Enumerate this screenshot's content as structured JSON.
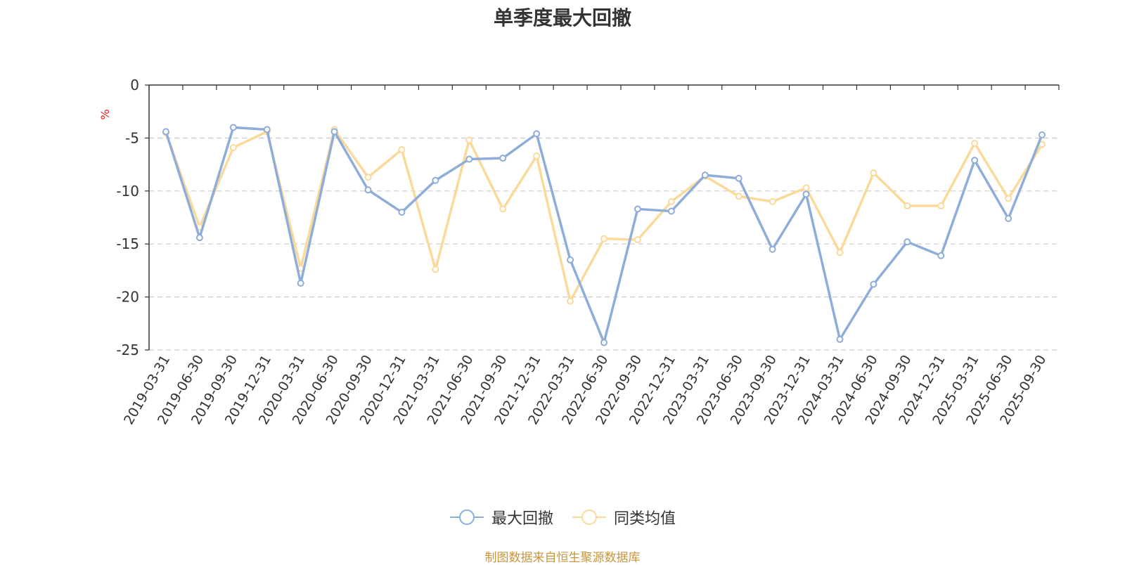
{
  "colors": {
    "series1": "#8fadd9",
    "series2": "#fbd99a",
    "axis": "#333333",
    "grid": "#cccccc",
    "unit": "#e02020",
    "source": "#c8963e"
  },
  "chart_data": {
    "type": "line",
    "title": "单季度最大回撤",
    "ylabel": "%",
    "ylim": [
      -25,
      0
    ],
    "yticks": [
      0,
      -5,
      -10,
      -15,
      -20,
      -25
    ],
    "grid": true,
    "legend_position": "bottom-center",
    "x": [
      "2019-03-31",
      "2019-06-30",
      "2019-09-30",
      "2019-12-31",
      "2020-03-31",
      "2020-06-30",
      "2020-09-30",
      "2020-12-31",
      "2021-03-31",
      "2021-06-30",
      "2021-09-30",
      "2021-12-31",
      "2022-03-31",
      "2022-06-30",
      "2022-09-30",
      "2022-12-31",
      "2023-03-31",
      "2023-06-30",
      "2023-09-30",
      "2023-12-31",
      "2024-03-31",
      "2024-06-30",
      "2024-09-30",
      "2024-12-31",
      "2025-03-31",
      "2025-06-30",
      "2025-09-30"
    ],
    "series": [
      {
        "name": "最大回撤",
        "values": [
          -4.4,
          -14.4,
          -4.0,
          -4.2,
          -18.7,
          -4.4,
          -9.9,
          -12.0,
          -9.0,
          -7.0,
          -6.9,
          -4.6,
          -16.5,
          -24.3,
          -11.7,
          -11.9,
          -8.5,
          -8.8,
          -15.5,
          -10.3,
          -24.0,
          -18.8,
          -14.8,
          -16.1,
          -7.1,
          -12.6,
          -4.7
        ]
      },
      {
        "name": "同类均值",
        "values": [
          -4.5,
          -13.4,
          -5.9,
          -4.4,
          -17.3,
          -4.2,
          -8.7,
          -6.1,
          -17.4,
          -5.2,
          -11.7,
          -6.7,
          -20.4,
          -14.5,
          -14.6,
          -11.0,
          -8.6,
          -10.5,
          -11.0,
          -9.7,
          -15.8,
          -8.3,
          -11.4,
          -11.4,
          -5.5,
          -10.7,
          -5.6
        ]
      }
    ]
  },
  "source_note": "制图数据来自恒生聚源数据库"
}
